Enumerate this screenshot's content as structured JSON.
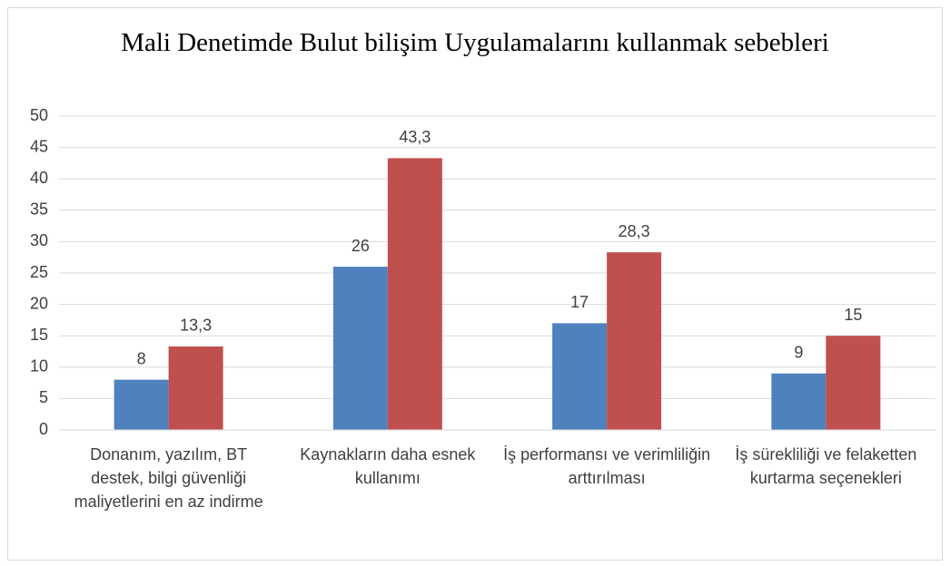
{
  "chart_data": {
    "type": "bar",
    "title": "Mali Denetimde Bulut bilişim Uygulamalarını kullanmak sebebleri",
    "categories": [
      "Donanım, yazılım, BT destek, bilgi güvenliği maliyetlerini en az indirme",
      "Kaynakların daha esnek kullanımı",
      "İş performansı ve verimliliğin arttırılması",
      "İş sürekliliği ve felaketten kurtarma seçenekleri"
    ],
    "series": [
      {
        "color": "#4f81bd",
        "values": [
          8,
          26,
          17,
          9
        ]
      },
      {
        "color": "#c0504d",
        "values": [
          13.3,
          43.3,
          28.3,
          15
        ],
        "value_labels": [
          "13,3",
          "43,3",
          "28,3",
          "15"
        ]
      }
    ],
    "ylim": [
      0,
      50
    ],
    "yticks": [
      0,
      5,
      10,
      15,
      20,
      25,
      30,
      35,
      40,
      45,
      50
    ],
    "grid": true
  }
}
